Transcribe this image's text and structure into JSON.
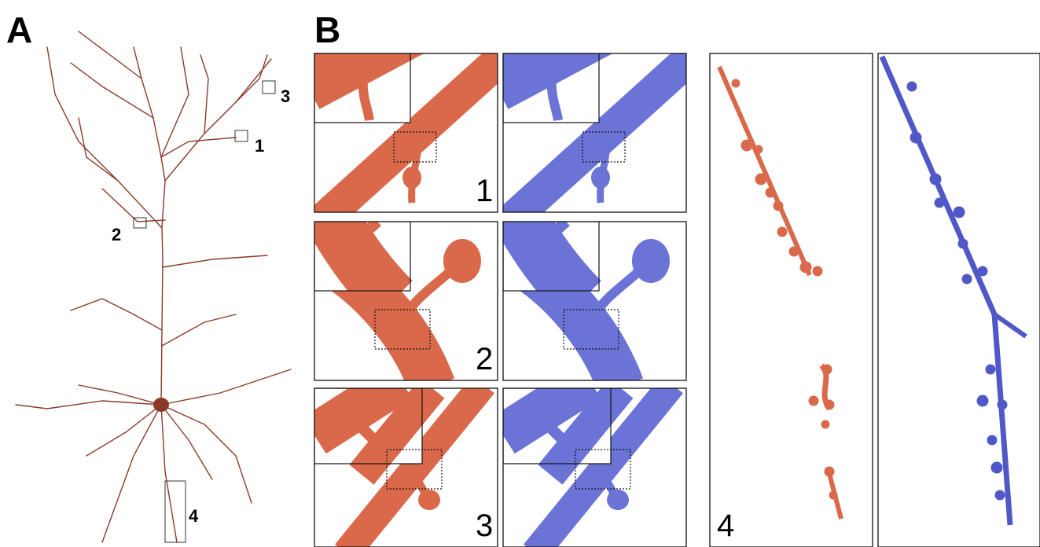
{
  "panel_a": {
    "label": "A",
    "region_labels": [
      "1",
      "2",
      "3",
      "4"
    ]
  },
  "panel_b": {
    "label": "B",
    "panel_numbers": [
      "1",
      "2",
      "3",
      "4"
    ]
  }
}
